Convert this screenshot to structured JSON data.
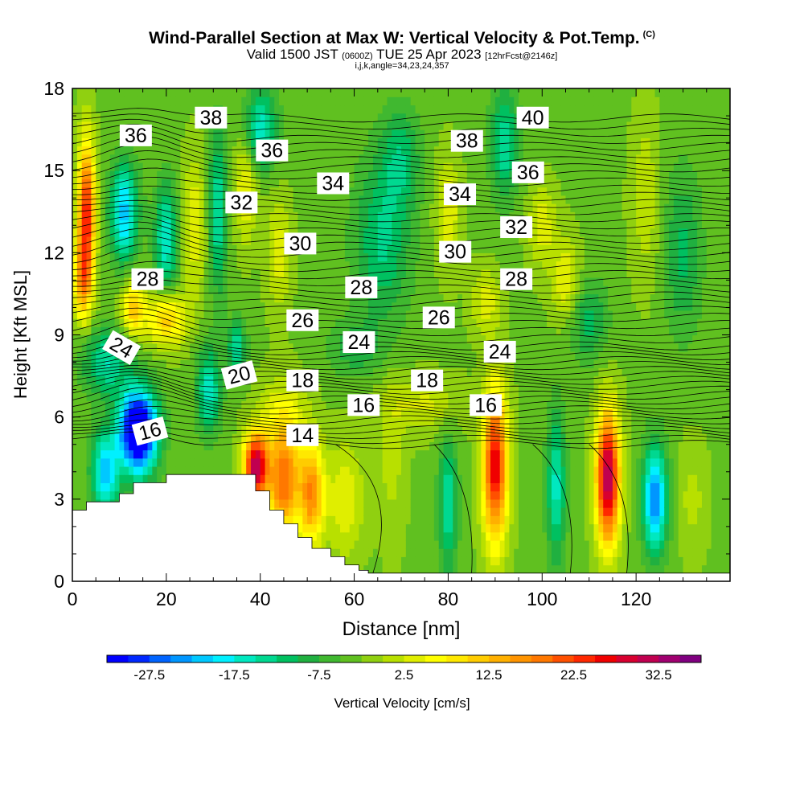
{
  "chart_data": {
    "type": "heatmap",
    "title": "Wind-Parallel Section at Max W: Vertical Velocity & Pot.Temp.",
    "title_mark": "(C)",
    "subtitle_main": "Valid 1500 JST",
    "subtitle_utc": "(0600Z)",
    "subtitle_date": "TUE 25 Apr 2023",
    "subtitle_fcst": "[12hrFcst@2146z]",
    "subtitle2": "i,j,k,angle=34,23,24,357",
    "xlabel": "Distance [nm]",
    "ylabel": "Height [Kft MSL]",
    "xlim": [
      0,
      140
    ],
    "ylim": [
      0,
      18
    ],
    "x_ticks": [
      "0",
      "20",
      "40",
      "60",
      "80",
      "100",
      "120"
    ],
    "x_tick_values": [
      0,
      20,
      40,
      60,
      80,
      100,
      120
    ],
    "y_ticks": [
      "0",
      "3",
      "6",
      "9",
      "12",
      "15",
      "18"
    ],
    "y_tick_values": [
      0,
      3,
      6,
      9,
      12,
      15,
      18
    ],
    "colorbar_label": "Vertical Velocity [cm/s]",
    "colorbar_ticks": [
      "-27.5",
      "-17.5",
      "-7.5",
      "2.5",
      "12.5",
      "22.5",
      "32.5"
    ],
    "colorbar_range": [
      -32.5,
      37.5
    ],
    "colorbar_step": 2.5,
    "colorbar_colors": [
      "#0000ff",
      "#0028ff",
      "#0064ff",
      "#0096ff",
      "#00c8ff",
      "#00f0ff",
      "#00e8c0",
      "#00d890",
      "#00c060",
      "#20b040",
      "#40b830",
      "#60c020",
      "#90d010",
      "#b8e000",
      "#e0ee00",
      "#ffff00",
      "#ffe800",
      "#ffcc00",
      "#ffb000",
      "#ff9400",
      "#ff7800",
      "#ff5000",
      "#ff2800",
      "#f00000",
      "#d80030",
      "#c00050",
      "#a00070",
      "#800080"
    ],
    "terrain": [
      [
        0,
        2.6
      ],
      [
        3,
        2.6
      ],
      [
        3,
        2.9
      ],
      [
        10,
        2.9
      ],
      [
        10,
        3.2
      ],
      [
        13,
        3.2
      ],
      [
        13,
        3.6
      ],
      [
        20,
        3.6
      ],
      [
        20,
        3.9
      ],
      [
        39,
        3.9
      ],
      [
        39,
        3.3
      ],
      [
        42,
        3.3
      ],
      [
        42,
        2.6
      ],
      [
        45,
        2.6
      ],
      [
        45,
        2.1
      ],
      [
        48,
        2.1
      ],
      [
        48,
        1.6
      ],
      [
        51,
        1.6
      ],
      [
        51,
        1.2
      ],
      [
        55,
        1.2
      ],
      [
        55,
        0.9
      ],
      [
        58,
        0.9
      ],
      [
        58,
        0.6
      ],
      [
        61,
        0.6
      ],
      [
        61,
        0.4
      ],
      [
        63,
        0.4
      ],
      [
        63,
        0.3
      ],
      [
        140,
        0.3
      ]
    ],
    "theta_labels": [
      {
        "text": "36",
        "x": 13.5,
        "y": 16.3,
        "rot": 0
      },
      {
        "text": "38",
        "x": 29.5,
        "y": 16.95,
        "rot": 0
      },
      {
        "text": "36",
        "x": 42.5,
        "y": 15.75,
        "rot": 0
      },
      {
        "text": "34",
        "x": 55.5,
        "y": 14.55,
        "rot": 0
      },
      {
        "text": "32",
        "x": 36.0,
        "y": 13.85,
        "rot": 0
      },
      {
        "text": "30",
        "x": 48.5,
        "y": 12.35,
        "rot": 0
      },
      {
        "text": "28",
        "x": 16.0,
        "y": 11.05,
        "rot": 0
      },
      {
        "text": "28",
        "x": 61.5,
        "y": 10.75,
        "rot": 0
      },
      {
        "text": "26",
        "x": 49.0,
        "y": 9.55,
        "rot": 0
      },
      {
        "text": "24",
        "x": 10.5,
        "y": 8.55,
        "rot": 30
      },
      {
        "text": "24",
        "x": 61.0,
        "y": 8.75,
        "rot": 0
      },
      {
        "text": "20",
        "x": 35.5,
        "y": 7.55,
        "rot": -15
      },
      {
        "text": "18",
        "x": 49.0,
        "y": 7.35,
        "rot": 0
      },
      {
        "text": "16",
        "x": 16.5,
        "y": 5.5,
        "rot": -15
      },
      {
        "text": "16",
        "x": 62.0,
        "y": 6.45,
        "rot": 0
      },
      {
        "text": "14",
        "x": 49.0,
        "y": 5.35,
        "rot": 0
      },
      {
        "text": "38",
        "x": 84.0,
        "y": 16.1,
        "rot": 0
      },
      {
        "text": "40",
        "x": 98.0,
        "y": 16.95,
        "rot": 0
      },
      {
        "text": "34",
        "x": 82.5,
        "y": 14.15,
        "rot": 0
      },
      {
        "text": "36",
        "x": 97.0,
        "y": 14.95,
        "rot": 0
      },
      {
        "text": "32",
        "x": 94.5,
        "y": 12.95,
        "rot": 0
      },
      {
        "text": "30",
        "x": 81.5,
        "y": 12.05,
        "rot": 0
      },
      {
        "text": "28",
        "x": 94.5,
        "y": 11.05,
        "rot": 0
      },
      {
        "text": "26",
        "x": 78.0,
        "y": 9.65,
        "rot": 0
      },
      {
        "text": "24",
        "x": 91.0,
        "y": 8.4,
        "rot": 0
      },
      {
        "text": "18",
        "x": 75.5,
        "y": 7.35,
        "rot": 0
      },
      {
        "text": "16",
        "x": 88.0,
        "y": 6.45,
        "rot": 0
      }
    ],
    "w_blobs": [
      {
        "x": 3,
        "y": 13.5,
        "sx": 1.8,
        "sy": 2.6,
        "v": 28
      },
      {
        "x": 2,
        "y": 11.0,
        "sx": 2.0,
        "sy": 1.5,
        "v": 15
      },
      {
        "x": 11,
        "y": 13.5,
        "sx": 3.0,
        "sy": 1.8,
        "v": -18
      },
      {
        "x": 20,
        "y": 12.5,
        "sx": 2.5,
        "sy": 2.0,
        "v": -14
      },
      {
        "x": 13,
        "y": 10.0,
        "sx": 2.5,
        "sy": 1.0,
        "v": 15
      },
      {
        "x": 20,
        "y": 9.6,
        "sx": 4.0,
        "sy": 1.0,
        "v": 15
      },
      {
        "x": 26,
        "y": 13.0,
        "sx": 2.5,
        "sy": 2.5,
        "v": 8
      },
      {
        "x": 31,
        "y": 13.5,
        "sx": 2.0,
        "sy": 3.0,
        "v": -12
      },
      {
        "x": 37,
        "y": 14.5,
        "sx": 2.5,
        "sy": 2.0,
        "v": 9
      },
      {
        "x": 44,
        "y": 12.0,
        "sx": 2.5,
        "sy": 2.0,
        "v": 7
      },
      {
        "x": 40,
        "y": 16.5,
        "sx": 3.5,
        "sy": 1.5,
        "v": -14
      },
      {
        "x": 7,
        "y": 8.0,
        "sx": 5.0,
        "sy": 1.2,
        "v": -12
      },
      {
        "x": 14,
        "y": 5.5,
        "sx": 4.0,
        "sy": 1.5,
        "v": -38
      },
      {
        "x": 7,
        "y": 4.0,
        "sx": 3.0,
        "sy": 1.5,
        "v": -18
      },
      {
        "x": 29,
        "y": 7.0,
        "sx": 2.5,
        "sy": 1.5,
        "v": -14
      },
      {
        "x": 35,
        "y": 8.5,
        "sx": 2.0,
        "sy": 1.0,
        "v": -12
      },
      {
        "x": 39,
        "y": 4.2,
        "sx": 2.5,
        "sy": 1.2,
        "v": 35
      },
      {
        "x": 45,
        "y": 3.6,
        "sx": 3.5,
        "sy": 1.8,
        "v": 22
      },
      {
        "x": 51,
        "y": 3.2,
        "sx": 2.5,
        "sy": 1.8,
        "v": 20
      },
      {
        "x": 45,
        "y": 6.0,
        "sx": 5.0,
        "sy": 1.5,
        "v": 8
      },
      {
        "x": 58,
        "y": 3.0,
        "sx": 4.0,
        "sy": 2.0,
        "v": 8
      },
      {
        "x": 68,
        "y": 4.5,
        "sx": 3.0,
        "sy": 3.0,
        "v": 4
      },
      {
        "x": 80,
        "y": 2.8,
        "sx": 2.0,
        "sy": 2.5,
        "v": -12
      },
      {
        "x": 90,
        "y": 4.2,
        "sx": 2.6,
        "sy": 2.8,
        "v": 30
      },
      {
        "x": 103,
        "y": 3.5,
        "sx": 2.0,
        "sy": 2.8,
        "v": -13
      },
      {
        "x": 114,
        "y": 3.8,
        "sx": 2.5,
        "sy": 2.4,
        "v": 36
      },
      {
        "x": 124,
        "y": 3.0,
        "sx": 2.6,
        "sy": 2.0,
        "v": -22
      },
      {
        "x": 132,
        "y": 3.0,
        "sx": 3.0,
        "sy": 2.0,
        "v": 4
      },
      {
        "x": 66,
        "y": 12.5,
        "sx": 6.0,
        "sy": 3.0,
        "v": -10
      },
      {
        "x": 70,
        "y": 15.5,
        "sx": 4.0,
        "sy": 1.8,
        "v": -8
      },
      {
        "x": 92,
        "y": 16.0,
        "sx": 3.0,
        "sy": 2.0,
        "v": -12
      },
      {
        "x": 100,
        "y": 13.0,
        "sx": 3.0,
        "sy": 1.5,
        "v": 7
      },
      {
        "x": 105,
        "y": 11.0,
        "sx": 3.0,
        "sy": 1.5,
        "v": 8
      },
      {
        "x": 88,
        "y": 10.2,
        "sx": 3.0,
        "sy": 1.2,
        "v": 7
      },
      {
        "x": 110,
        "y": 9.5,
        "sx": 4.0,
        "sy": 1.5,
        "v": -8
      },
      {
        "x": 122,
        "y": 14.0,
        "sx": 3.0,
        "sy": 3.0,
        "v": 5
      },
      {
        "x": 130,
        "y": 12.0,
        "sx": 4.0,
        "sy": 3.0,
        "v": -8
      },
      {
        "x": 80,
        "y": 13.5,
        "sx": 2.5,
        "sy": 2.0,
        "v": 8
      },
      {
        "x": 60,
        "y": 8.5,
        "sx": 6.0,
        "sy": 1.0,
        "v": -6
      },
      {
        "x": 75,
        "y": 6.5,
        "sx": 8.0,
        "sy": 1.0,
        "v": 6
      }
    ],
    "background_value": -3
  }
}
